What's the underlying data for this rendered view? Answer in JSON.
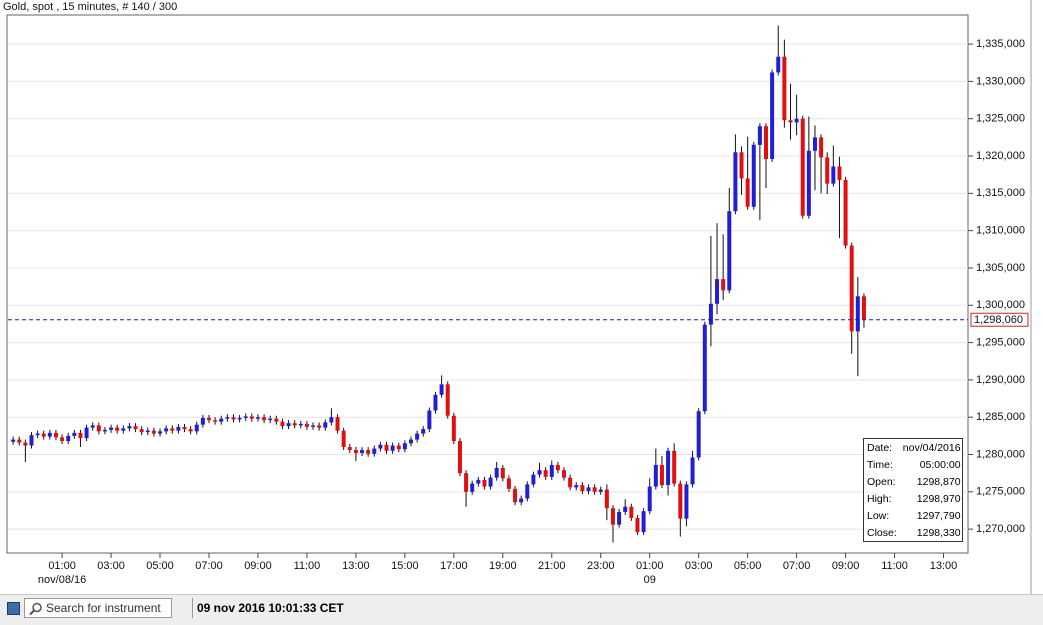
{
  "chart_data": {
    "type": "candlestick",
    "title": "Gold, spot , 15 minutes, # 140 / 300",
    "up_color": "#1f1fd6",
    "down_color": "#e01010",
    "grid": "y",
    "xlim": [
      -1,
      156
    ],
    "ylim": [
      1266800,
      1338900
    ],
    "yticks": [
      {
        "value": 1270000,
        "label": "1,270,000"
      },
      {
        "value": 1275000,
        "label": "1,275,000"
      },
      {
        "value": 1280000,
        "label": "1,280,000"
      },
      {
        "value": 1285000,
        "label": "1,285,000"
      },
      {
        "value": 1290000,
        "label": "1,290,000"
      },
      {
        "value": 1295000,
        "label": "1,295,000"
      },
      {
        "value": 1300000,
        "label": "1,300,000"
      },
      {
        "value": 1305000,
        "label": "1,305,000"
      },
      {
        "value": 1310000,
        "label": "1,310,000"
      },
      {
        "value": 1315000,
        "label": "1,315,000"
      },
      {
        "value": 1320000,
        "label": "1,320,000"
      },
      {
        "value": 1325000,
        "label": "1,325,000"
      },
      {
        "value": 1330000,
        "label": "1,330,000"
      },
      {
        "value": 1335000,
        "label": "1,335,000"
      }
    ],
    "xticks": [
      {
        "value": 8,
        "label": "01:00"
      },
      {
        "value": 16,
        "label": "03:00"
      },
      {
        "value": 24,
        "label": "05:00"
      },
      {
        "value": 32,
        "label": "07:00"
      },
      {
        "value": 40,
        "label": "09:00"
      },
      {
        "value": 48,
        "label": "11:00"
      },
      {
        "value": 56,
        "label": "13:00"
      },
      {
        "value": 64,
        "label": "15:00"
      },
      {
        "value": 72,
        "label": "17:00"
      },
      {
        "value": 80,
        "label": "19:00"
      },
      {
        "value": 88,
        "label": "21:00"
      },
      {
        "value": 96,
        "label": "23:00"
      },
      {
        "value": 104,
        "label": "01:00"
      },
      {
        "value": 112,
        "label": "03:00"
      },
      {
        "value": 120,
        "label": "05:00"
      },
      {
        "value": 128,
        "label": "07:00"
      },
      {
        "value": 136,
        "label": "09:00"
      },
      {
        "value": 144,
        "label": "11:00"
      },
      {
        "value": 152,
        "label": "13:00"
      }
    ],
    "xticks2": [
      {
        "value": 8,
        "label": "nov/08/16"
      },
      {
        "value": 104,
        "label": "09"
      }
    ],
    "open": [
      1281700,
      1282000,
      1281600,
      1281200,
      1282600,
      1282800,
      1282400,
      1282900,
      1282300,
      1281800,
      1282500,
      1282900,
      1282200,
      1283600,
      1283900,
      1283100,
      1283300,
      1283600,
      1283200,
      1283500,
      1283800,
      1283400,
      1283000,
      1283200,
      1282800,
      1283100,
      1283500,
      1283200,
      1283700,
      1283400,
      1283100,
      1284000,
      1284900,
      1284600,
      1284400,
      1284800,
      1285000,
      1284700,
      1284900,
      1285100,
      1284800,
      1285000,
      1284600,
      1284800,
      1284400,
      1283800,
      1284200,
      1283900,
      1284100,
      1283700,
      1283900,
      1283600,
      1284300,
      1285000,
      1283200,
      1281000,
      1280600,
      1280200,
      1280600,
      1280100,
      1280800,
      1281300,
      1280500,
      1281200,
      1280700,
      1281500,
      1282000,
      1282800,
      1283400,
      1285900,
      1288000,
      1289400,
      1285200,
      1281800,
      1277500,
      1275000,
      1276100,
      1276600,
      1275700,
      1276900,
      1278200,
      1276800,
      1275400,
      1273600,
      1274100,
      1276000,
      1277300,
      1277900,
      1277000,
      1278600,
      1277900,
      1276900,
      1275600,
      1275900,
      1275100,
      1275600,
      1275000,
      1275300,
      1272800,
      1270600,
      1272300,
      1273000,
      1271500,
      1269600,
      1272400,
      1275700,
      1278600,
      1275900,
      1280500,
      1276100,
      1271400,
      1276000,
      1279600,
      1285800,
      1297400,
      1300200,
      1303500,
      1302000,
      1312600,
      1320500,
      1317000,
      1313200,
      1321500,
      1324000,
      1319600,
      1331200,
      1333300,
      1324800,
      1324500,
      1325000,
      1312000,
      1320700,
      1322500,
      1319800,
      1316300,
      1318600,
      1316800,
      1308000,
      1296500,
      1301200
    ],
    "high": [
      1282400,
      1282400,
      1282000,
      1283000,
      1283200,
      1283200,
      1283300,
      1283300,
      1282700,
      1282900,
      1283300,
      1283300,
      1284000,
      1284300,
      1284300,
      1283700,
      1284000,
      1284000,
      1283900,
      1284200,
      1284200,
      1283800,
      1283600,
      1283600,
      1283500,
      1283900,
      1283900,
      1284100,
      1284100,
      1283800,
      1284400,
      1285300,
      1285300,
      1285000,
      1285200,
      1285400,
      1285400,
      1285300,
      1285500,
      1285500,
      1285400,
      1285400,
      1285200,
      1285200,
      1284800,
      1284600,
      1284600,
      1284500,
      1284500,
      1284300,
      1284300,
      1284700,
      1286200,
      1285400,
      1283600,
      1281400,
      1281000,
      1281000,
      1281000,
      1281200,
      1281700,
      1281700,
      1281600,
      1281600,
      1281900,
      1282400,
      1283200,
      1283800,
      1286300,
      1288400,
      1290600,
      1289800,
      1285600,
      1282200,
      1277900,
      1276500,
      1277000,
      1277000,
      1277300,
      1279000,
      1278600,
      1277200,
      1275800,
      1274500,
      1276400,
      1277700,
      1278900,
      1278300,
      1279200,
      1279000,
      1278300,
      1277300,
      1276300,
      1276300,
      1276000,
      1276000,
      1275700,
      1276000,
      1273200,
      1272700,
      1274000,
      1273400,
      1271900,
      1272800,
      1276800,
      1280800,
      1279800,
      1280900,
      1281500,
      1276500,
      1276400,
      1280500,
      1286200,
      1297800,
      1309300,
      1311000,
      1309500,
      1315700,
      1322900,
      1321300,
      1322600,
      1321900,
      1324400,
      1324400,
      1331600,
      1337500,
      1335600,
      1329700,
      1328200,
      1325400,
      1325300,
      1324100,
      1322900,
      1320500,
      1321400,
      1319900,
      1317200,
      1308400,
      1303800,
      1301600
    ],
    "low": [
      1281300,
      1281200,
      1279000,
      1280800,
      1282200,
      1282000,
      1282000,
      1281900,
      1281400,
      1281400,
      1282100,
      1281000,
      1281800,
      1283200,
      1282700,
      1282700,
      1282900,
      1282800,
      1282800,
      1283100,
      1283000,
      1282600,
      1282600,
      1282400,
      1282400,
      1282700,
      1282800,
      1282800,
      1283000,
      1282700,
      1282700,
      1283600,
      1284200,
      1284000,
      1284000,
      1284400,
      1284300,
      1284300,
      1284500,
      1284400,
      1284400,
      1284200,
      1284200,
      1284000,
      1283400,
      1283400,
      1283500,
      1283500,
      1283300,
      1283300,
      1283200,
      1283200,
      1283900,
      1282800,
      1280600,
      1280200,
      1279100,
      1279800,
      1279700,
      1279700,
      1280400,
      1280100,
      1280100,
      1280300,
      1280300,
      1281100,
      1281600,
      1282400,
      1283000,
      1285500,
      1287600,
      1284800,
      1281400,
      1277100,
      1273000,
      1274600,
      1275700,
      1275300,
      1275300,
      1276500,
      1276400,
      1275000,
      1273200,
      1273200,
      1273700,
      1275600,
      1276900,
      1276600,
      1276600,
      1277500,
      1276500,
      1275200,
      1275200,
      1274700,
      1274700,
      1274600,
      1274600,
      1271200,
      1268200,
      1270200,
      1271900,
      1271100,
      1269200,
      1269200,
      1272000,
      1275300,
      1275500,
      1274500,
      1275700,
      1269000,
      1270400,
      1275600,
      1279200,
      1285400,
      1294500,
      1298800,
      1300700,
      1301600,
      1312200,
      1314800,
      1312800,
      1312800,
      1311400,
      1315700,
      1319200,
      1330800,
      1323800,
      1322200,
      1322800,
      1311600,
      1311600,
      1315400,
      1315000,
      1314900,
      1315900,
      1309000,
      1307600,
      1293500,
      1290500,
      1297000
    ],
    "close": [
      1282000,
      1281600,
      1281200,
      1282600,
      1282800,
      1282400,
      1282900,
      1282300,
      1281800,
      1282500,
      1282900,
      1282200,
      1283600,
      1283900,
      1283100,
      1283300,
      1283600,
      1283200,
      1283500,
      1283800,
      1283400,
      1283000,
      1283200,
      1282800,
      1283100,
      1283500,
      1283200,
      1283700,
      1283400,
      1283100,
      1284000,
      1284900,
      1284600,
      1284400,
      1284800,
      1285000,
      1284700,
      1284900,
      1285100,
      1284800,
      1285000,
      1284600,
      1284800,
      1284400,
      1283800,
      1284200,
      1283900,
      1284100,
      1283700,
      1283900,
      1283600,
      1284300,
      1285000,
      1283200,
      1281000,
      1280600,
      1280200,
      1280600,
      1280100,
      1280800,
      1281300,
      1280500,
      1281200,
      1280700,
      1281500,
      1282000,
      1282800,
      1283400,
      1285900,
      1288000,
      1289400,
      1285200,
      1281800,
      1277500,
      1275000,
      1276100,
      1276600,
      1275700,
      1276900,
      1278200,
      1276800,
      1275400,
      1273600,
      1274100,
      1276000,
      1277300,
      1277900,
      1277000,
      1278600,
      1277900,
      1276900,
      1275600,
      1275900,
      1275100,
      1275600,
      1275000,
      1275300,
      1272800,
      1270600,
      1272300,
      1273000,
      1271500,
      1269600,
      1272400,
      1275700,
      1278600,
      1275900,
      1280500,
      1276100,
      1271400,
      1276000,
      1279600,
      1285800,
      1297400,
      1300200,
      1303500,
      1302000,
      1312600,
      1320500,
      1317000,
      1313200,
      1321500,
      1324000,
      1319600,
      1331200,
      1333300,
      1324800,
      1324500,
      1325000,
      1312000,
      1320700,
      1322500,
      1319800,
      1316300,
      1318600,
      1316800,
      1308000,
      1296500,
      1301200,
      1298060
    ],
    "last_price": {
      "value": 1298060,
      "label": "1,298,060"
    },
    "last_color": "#1a1aa0",
    "info": [
      [
        "Date:",
        "nov/04/2016"
      ],
      [
        "Time:",
        "05:00:00"
      ],
      [
        "Open:",
        "1298,870"
      ],
      [
        "High:",
        "1298,970"
      ],
      [
        "Low:",
        "1297,790"
      ],
      [
        "Close:",
        "1298,330"
      ]
    ]
  },
  "toolbar": {
    "search_placeholder": "Search for instrument",
    "timestamp": "09 nov 2016 10:01:33 CET"
  }
}
